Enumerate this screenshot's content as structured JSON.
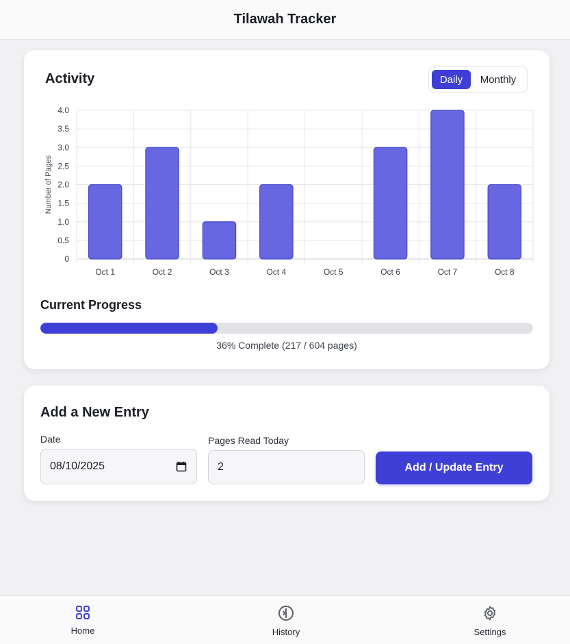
{
  "app": {
    "title": "Tilawah Tracker"
  },
  "activity": {
    "title": "Activity",
    "toggle": {
      "daily": "Daily",
      "monthly": "Monthly",
      "selected": "Daily"
    }
  },
  "chart_data": {
    "type": "bar",
    "title": "",
    "xlabel": "",
    "ylabel": "Number of Pages",
    "categories": [
      "Oct 1",
      "Oct 2",
      "Oct 3",
      "Oct 4",
      "Oct 5",
      "Oct 6",
      "Oct 7",
      "Oct 8"
    ],
    "values": [
      2,
      3,
      1,
      2,
      0,
      3,
      4,
      2
    ],
    "ylim": [
      0,
      4
    ],
    "yticks": [
      "0",
      "0.5",
      "1.0",
      "1.5",
      "2.0",
      "2.5",
      "3.0",
      "3.5",
      "4.0"
    ],
    "grid": true,
    "bar_color": "#6767e2",
    "bar_border": "#4747cc"
  },
  "progress": {
    "title": "Current Progress",
    "fraction": 0.36,
    "text": "36% Complete (217 / 604 pages)"
  },
  "entry": {
    "title": "Add a New Entry",
    "date_label": "Date",
    "date_value": "08/10/2025",
    "pages_label": "Pages Read Today",
    "pages_value": "2",
    "submit_label": "Add / Update Entry"
  },
  "nav": {
    "items": [
      {
        "label": "Home",
        "icon": "grid-icon"
      },
      {
        "label": "History",
        "icon": "history-icon"
      },
      {
        "label": "Settings",
        "icon": "gear-icon"
      }
    ]
  },
  "colors": {
    "accent": "#3f3fd7",
    "background": "#f1f1f4"
  }
}
